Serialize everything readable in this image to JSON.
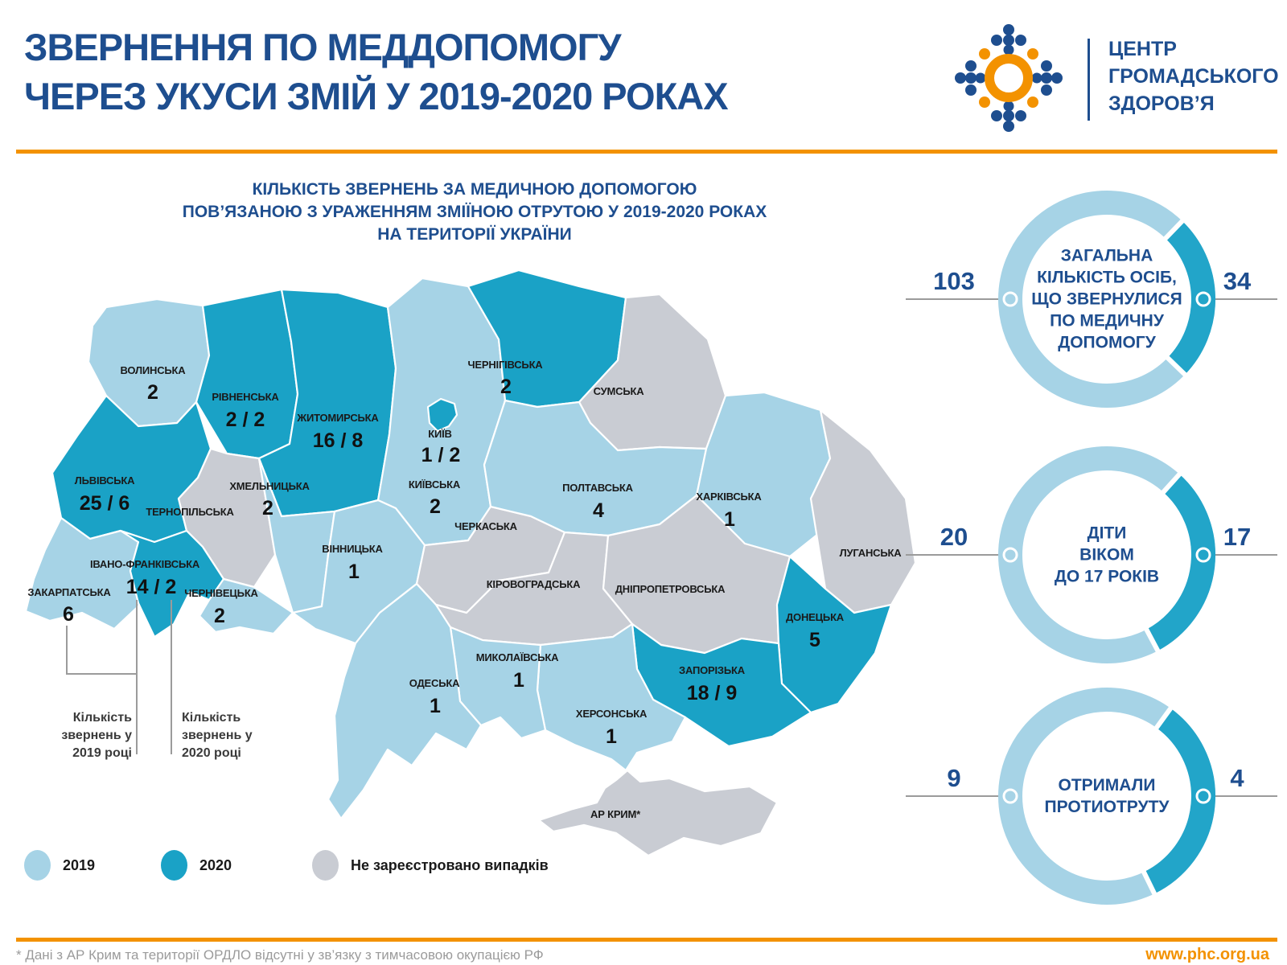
{
  "header": {
    "title_line1": "ЗВЕРНЕННЯ ПО МЕДДОПОМОГУ",
    "title_line2": "ЧЕРЕЗ УКУСИ ЗМІЙ У 2019-2020 РОКАХ",
    "logo_org_line1": "ЦЕНТР",
    "logo_org_line2": "ГРОМАДСЬКОГО",
    "logo_org_line3": "ЗДОРОВ’Я"
  },
  "map": {
    "title_line1": "КІЛЬКІСТЬ ЗВЕРНЕНЬ ЗА МЕДИЧНОЮ ДОПОМОГОЮ",
    "title_line2": "ПОВ’ЯЗАНОЮ З УРАЖЕННЯМ ЗМІЇНОЮ ОТРУТОЮ У 2019-2020 РОКАХ",
    "title_line3": "НА ТЕРИТОРІЇ УКРАЇНИ",
    "regions": [
      {
        "id": "volynska",
        "name": "ВОЛИНСЬКА",
        "display": "2",
        "year": "2019",
        "value_2019": 2,
        "value_2020": null
      },
      {
        "id": "rivnenska",
        "name": "РІВНЕНСЬКА",
        "display": "2 / 2",
        "year": "2020",
        "value_2019": 2,
        "value_2020": 2
      },
      {
        "id": "zhytomyrska",
        "name": "ЖИТОМИРСЬКА",
        "display": "16 / 8",
        "year": "2020",
        "value_2019": 16,
        "value_2020": 8
      },
      {
        "id": "kyivska",
        "name": "КИЇВСЬКА",
        "display": "2",
        "year": "2019",
        "value_2019": 2,
        "value_2020": null
      },
      {
        "id": "kyiv-city",
        "name": "КИЇВ",
        "display": "1 / 2",
        "year": "2020",
        "value_2019": 1,
        "value_2020": 2
      },
      {
        "id": "chernihivska",
        "name": "ЧЕРНІГІВСЬКА",
        "display": "2",
        "year": "2020",
        "value_2019": null,
        "value_2020": 2
      },
      {
        "id": "sumska",
        "name": "СУМСЬКА",
        "display": "",
        "year": "none",
        "value_2019": null,
        "value_2020": null
      },
      {
        "id": "lvivska",
        "name": "ЛЬВІВСЬКА",
        "display": "25 / 6",
        "year": "2020",
        "value_2019": 25,
        "value_2020": 6
      },
      {
        "id": "ternopilska",
        "name": "ТЕРНОПІЛЬСЬКА",
        "display": "",
        "year": "none",
        "value_2019": null,
        "value_2020": null
      },
      {
        "id": "khmelnytska",
        "name": "ХМЕЛЬНИЦЬКА",
        "display": "2",
        "year": "2019",
        "value_2019": 2,
        "value_2020": null
      },
      {
        "id": "vinnytska",
        "name": "ВІННИЦЬКА",
        "display": "1",
        "year": "2019",
        "value_2019": 1,
        "value_2020": null
      },
      {
        "id": "cherkaska",
        "name": "ЧЕРКАСЬКА",
        "display": "",
        "year": "none",
        "value_2019": null,
        "value_2020": null
      },
      {
        "id": "poltavska",
        "name": "ПОЛТАВСЬКА",
        "display": "4",
        "year": "2019",
        "value_2019": 4,
        "value_2020": null
      },
      {
        "id": "kharkivska",
        "name": "ХАРКІВСЬКА",
        "display": "1",
        "year": "2019",
        "value_2019": 1,
        "value_2020": null
      },
      {
        "id": "luhanska",
        "name": "ЛУГАНСЬКА",
        "display": "",
        "year": "none",
        "value_2019": null,
        "value_2020": null
      },
      {
        "id": "kirovohradska",
        "name": "КІРОВОГРАДСЬКА",
        "display": "",
        "year": "none",
        "value_2019": null,
        "value_2020": null
      },
      {
        "id": "dnipropetrovska",
        "name": "ДНІПРОПЕТРОВСЬКА",
        "display": "",
        "year": "none",
        "value_2019": null,
        "value_2020": null
      },
      {
        "id": "donetska",
        "name": "ДОНЕЦЬКА",
        "display": "5",
        "year": "2020",
        "value_2019": null,
        "value_2020": 5
      },
      {
        "id": "zaporizka",
        "name": "ЗАПОРІЗЬКА",
        "display": "18 / 9",
        "year": "2020",
        "value_2019": 18,
        "value_2020": 9
      },
      {
        "id": "khersonska",
        "name": "ХЕРСОНСЬКА",
        "display": "1",
        "year": "2019",
        "value_2019": 1,
        "value_2020": null
      },
      {
        "id": "mykolaivska",
        "name": "МИКОЛАЇВСЬКА",
        "display": "1",
        "year": "2019",
        "value_2019": 1,
        "value_2020": null
      },
      {
        "id": "odeska",
        "name": "ОДЕСЬКА",
        "display": "1",
        "year": "2019",
        "value_2019": 1,
        "value_2020": null
      },
      {
        "id": "krym",
        "name": "АР КРИМ*",
        "display": "",
        "year": "none",
        "value_2019": null,
        "value_2020": null
      },
      {
        "id": "zakarpatska",
        "name": "ЗАКАРПАТСЬКА",
        "display": "6",
        "year": "2019",
        "value_2019": 6,
        "value_2020": null
      },
      {
        "id": "ivano-frankivska",
        "name": "ІВАНО-ФРАНКІВСЬКА",
        "display": "14 / 2",
        "year": "2020",
        "value_2019": 14,
        "value_2020": 2
      },
      {
        "id": "chernivetska",
        "name": "ЧЕРНІВЕЦЬКА",
        "display": "2",
        "year": "2019",
        "value_2019": 2,
        "value_2020": null
      }
    ]
  },
  "annotations": {
    "label_2019": "Кількість звернень у 2019 році",
    "label_2020": "Кількість звернень у 2020 році"
  },
  "legend": {
    "items": [
      {
        "label": "2019",
        "color": "#A6D3E6"
      },
      {
        "label": "2020",
        "color": "#1AA2C6"
      },
      {
        "label": "Не зареєстровано випадків",
        "color": "#C9CCD3"
      }
    ]
  },
  "donuts": [
    {
      "left_value": "103",
      "right_value": "34",
      "label": "ЗАГАЛЬНА КІЛЬКІСТЬ ОСІБ, ЩО ЗВЕРНУЛИСЯ ПО МЕДИЧНУ ДОПОМОГУ",
      "label_lines": [
        "ЗАГАЛЬНА",
        "КІЛЬКІСТЬ ОСІБ,",
        "ЩО ЗВЕРНУЛИСЯ",
        "ПО МЕДИЧНУ",
        "ДОПОМОГУ"
      ],
      "arc_start_deg": 44,
      "arc_end_deg": 134
    },
    {
      "left_value": "20",
      "right_value": "17",
      "label": "ДІТИ ВІКОМ ДО 17 РОКІВ",
      "label_lines": [
        "ДІТИ",
        "ВІКОМ",
        "ДО 17 РОКІВ"
      ],
      "arc_start_deg": 42,
      "arc_end_deg": 152
    },
    {
      "left_value": "9",
      "right_value": "4",
      "label": "ОТРИМАЛИ ПРОТИОТРУТУ",
      "label_lines": [
        "ОТРИМАЛИ",
        "ПРОТИОТРУТУ"
      ],
      "arc_start_deg": 36,
      "arc_end_deg": 154
    }
  ],
  "footer": {
    "note": "* Дані з АР Крим та території ОРДЛО відсутні у зв’язку з тимчасовою окупацією РФ",
    "url": "www.phc.org.ua"
  },
  "colors": {
    "accent_blue": "#1E4E8F",
    "accent_orange": "#F39200",
    "map_2019": "#A6D3E6",
    "map_2020": "#1AA2C6",
    "map_none": "#C9CCD3",
    "donut_light": "#A6D3E6",
    "donut_dark": "#22A5C9",
    "line_gray": "#9B9B9B"
  },
  "chart_data": [
    {
      "type": "map-choropleth",
      "title": "КІЛЬКІСТЬ ЗВЕРНЕНЬ ЗА МЕДИЧНОЮ ДОПОМОГОЮ ПОВ’ЯЗАНОЮ З УРАЖЕННЯМ ЗМІЇНОЮ ОТРУТОЮ У 2019-2020 РОКАХ НА ТЕРИТОРІЇ УКРАЇНИ",
      "legend": [
        "2019",
        "2020",
        "Не зареєстровано випадків"
      ],
      "series": [
        {
          "region": "ВОЛИНСЬКА",
          "y2019": 2,
          "y2020": null
        },
        {
          "region": "РІВНЕНСЬКА",
          "y2019": 2,
          "y2020": 2
        },
        {
          "region": "ЖИТОМИРСЬКА",
          "y2019": 16,
          "y2020": 8
        },
        {
          "region": "КИЇВСЬКА",
          "y2019": 2,
          "y2020": null
        },
        {
          "region": "КИЇВ",
          "y2019": 1,
          "y2020": 2
        },
        {
          "region": "ЧЕРНІГІВСЬКА",
          "y2019": null,
          "y2020": 2
        },
        {
          "region": "СУМСЬКА",
          "y2019": null,
          "y2020": null
        },
        {
          "region": "ЛЬВІВСЬКА",
          "y2019": 25,
          "y2020": 6
        },
        {
          "region": "ТЕРНОПІЛЬСЬКА",
          "y2019": null,
          "y2020": null
        },
        {
          "region": "ХМЕЛЬНИЦЬКА",
          "y2019": 2,
          "y2020": null
        },
        {
          "region": "ВІННИЦЬКА",
          "y2019": 1,
          "y2020": null
        },
        {
          "region": "ЧЕРКАСЬКА",
          "y2019": null,
          "y2020": null
        },
        {
          "region": "ПОЛТАВСЬКА",
          "y2019": 4,
          "y2020": null
        },
        {
          "region": "ХАРКІВСЬКА",
          "y2019": 1,
          "y2020": null
        },
        {
          "region": "ЛУГАНСЬКА",
          "y2019": null,
          "y2020": null
        },
        {
          "region": "КІРОВОГРАДСЬКА",
          "y2019": null,
          "y2020": null
        },
        {
          "region": "ДНІПРОПЕТРОВСЬКА",
          "y2019": null,
          "y2020": null
        },
        {
          "region": "ДОНЕЦЬКА",
          "y2019": null,
          "y2020": 5
        },
        {
          "region": "ЗАПОРІЗЬКА",
          "y2019": 18,
          "y2020": 9
        },
        {
          "region": "ХЕРСОНСЬКА",
          "y2019": 1,
          "y2020": null
        },
        {
          "region": "МИКОЛАЇВСЬКА",
          "y2019": 1,
          "y2020": null
        },
        {
          "region": "ОДЕСЬКА",
          "y2019": 1,
          "y2020": null
        },
        {
          "region": "АР КРИМ*",
          "y2019": null,
          "y2020": null
        },
        {
          "region": "ЗАКАРПАТСЬКА",
          "y2019": 6,
          "y2020": null
        },
        {
          "region": "ІВАНО-ФРАНКІВСЬКА",
          "y2019": 14,
          "y2020": 2
        },
        {
          "region": "ЧЕРНІВЕЦЬКА",
          "y2019": 2,
          "y2020": null
        }
      ]
    },
    {
      "type": "pie",
      "title": "ЗАГАЛЬНА КІЛЬКІСТЬ ОСІБ, ЩО ЗВЕРНУЛИСЯ ПО МЕДИЧНУ ДОПОМОГУ",
      "categories": [
        "2019",
        "2020"
      ],
      "values": [
        103,
        34
      ]
    },
    {
      "type": "pie",
      "title": "ДІТИ ВІКОМ ДО 17 РОКІВ",
      "categories": [
        "2019",
        "2020"
      ],
      "values": [
        20,
        17
      ]
    },
    {
      "type": "pie",
      "title": "ОТРИМАЛИ ПРОТИОТРУТУ",
      "categories": [
        "2019",
        "2020"
      ],
      "values": [
        9,
        4
      ]
    }
  ]
}
